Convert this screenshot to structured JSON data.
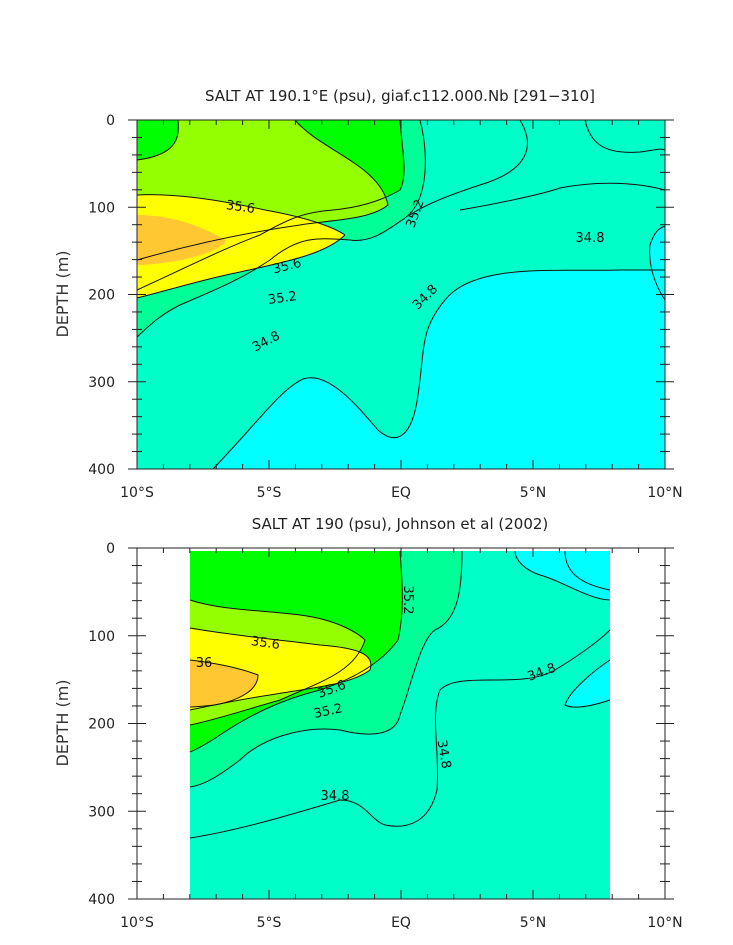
{
  "colors": {
    "c_lt_34_6": "#00ffff",
    "c_34_6_34_8": "#00ffc8",
    "c_34_8_35_2": "#00ff96",
    "c_35_2_35_4": "#00ff00",
    "c_35_4_35_6": "#94ff00",
    "c_35_6_36": "#ffff00",
    "c_gt_36": "#ffc832",
    "line": "#111111"
  },
  "chart_data": [
    {
      "type": "contour",
      "title": "SALT AT 190.1°E (psu), giaf.c112.000.Nb [291−310]",
      "xlabel": "",
      "ylabel": "DEPTH (m)",
      "x_ticks": [
        "10°S",
        "5°S",
        "EQ",
        "5°N",
        "10°N"
      ],
      "x_range": [
        -10,
        10
      ],
      "y_ticks": [
        "0",
        "100",
        "200",
        "300",
        "400"
      ],
      "y_range": [
        0,
        400
      ],
      "y_inverted": true,
      "contour_labels": [
        "35.6",
        "35.6",
        "35.2",
        "35.2",
        "34.8",
        "34.8",
        "34.8"
      ],
      "data_extent": [
        -10,
        10
      ]
    },
    {
      "type": "contour",
      "title": "SALT AT 190 (psu), Johnson et al (2002)",
      "xlabel": "",
      "ylabel": "DEPTH (m)",
      "x_ticks": [
        "10°S",
        "5°S",
        "EQ",
        "5°N",
        "10°N"
      ],
      "x_range": [
        -10,
        10
      ],
      "y_ticks": [
        "0",
        "100",
        "200",
        "300",
        "400"
      ],
      "y_range": [
        0,
        400
      ],
      "y_inverted": true,
      "contour_labels": [
        "36",
        "35.6",
        "35.6",
        "35.2",
        "35.2",
        "34.8",
        "34.8",
        "34.8"
      ],
      "data_extent": [
        -8,
        8
      ]
    }
  ]
}
